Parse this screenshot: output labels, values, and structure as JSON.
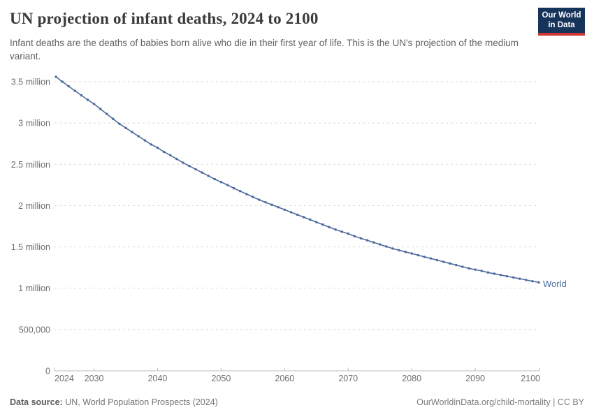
{
  "header": {
    "title": "UN projection of infant deaths, 2024 to 2100",
    "subtitle": "Infant deaths are the deaths of babies born alive who die in their first year of life. This is the UN's projection of the medium variant.",
    "logo": {
      "line1": "Our World",
      "line2": "in Data",
      "bg_color": "#16335a",
      "bar_color": "#cd3535"
    }
  },
  "footer": {
    "source_label": "Data source:",
    "source_value": " UN, World Population Prospects (2024)",
    "link": "OurWorldinData.org/child-mortality",
    "license": " | CC BY"
  },
  "chart_data": {
    "type": "line",
    "title": "UN projection of infant deaths, 2024 to 2100",
    "xlabel": "",
    "ylabel": "",
    "xlim": [
      2024,
      2100
    ],
    "ylim": [
      0,
      3500000
    ],
    "grid": "horizontal-dashed",
    "legend_position": "end-of-line",
    "colors": {
      "line": "#4c6a9c",
      "gridline": "#d9d9d9",
      "axis": "#bcbcbc",
      "tick_text": "#6e6e6e"
    },
    "x_ticks": [
      2024,
      2030,
      2040,
      2050,
      2060,
      2070,
      2080,
      2090,
      2100
    ],
    "y_ticks": [
      {
        "value": 0,
        "label": "0"
      },
      {
        "value": 500000,
        "label": "500,000"
      },
      {
        "value": 1000000,
        "label": "1 million"
      },
      {
        "value": 1500000,
        "label": "1.5 million"
      },
      {
        "value": 2000000,
        "label": "2 million"
      },
      {
        "value": 2500000,
        "label": "2.5 million"
      },
      {
        "value": 3000000,
        "label": "3 million"
      },
      {
        "value": 3500000,
        "label": "3.5 million"
      }
    ],
    "x": [
      2024,
      2025,
      2026,
      2027,
      2028,
      2029,
      2030,
      2031,
      2032,
      2033,
      2034,
      2035,
      2036,
      2037,
      2038,
      2039,
      2040,
      2041,
      2042,
      2043,
      2044,
      2045,
      2046,
      2047,
      2048,
      2049,
      2050,
      2051,
      2052,
      2053,
      2054,
      2055,
      2056,
      2057,
      2058,
      2059,
      2060,
      2061,
      2062,
      2063,
      2064,
      2065,
      2066,
      2067,
      2068,
      2069,
      2070,
      2071,
      2072,
      2073,
      2074,
      2075,
      2076,
      2077,
      2078,
      2079,
      2080,
      2081,
      2082,
      2083,
      2084,
      2085,
      2086,
      2087,
      2088,
      2089,
      2090,
      2091,
      2092,
      2093,
      2094,
      2095,
      2096,
      2097,
      2098,
      2099,
      2100
    ],
    "series": [
      {
        "name": "World",
        "color": "#4c6a9c",
        "values": [
          3560000,
          3500000,
          3445000,
          3390000,
          3335000,
          3280000,
          3230000,
          3170000,
          3110000,
          3050000,
          2990000,
          2940000,
          2890000,
          2840000,
          2790000,
          2740000,
          2700000,
          2650000,
          2610000,
          2565000,
          2520000,
          2480000,
          2440000,
          2400000,
          2360000,
          2320000,
          2285000,
          2250000,
          2210000,
          2175000,
          2140000,
          2105000,
          2070000,
          2040000,
          2010000,
          1980000,
          1950000,
          1920000,
          1890000,
          1860000,
          1830000,
          1800000,
          1770000,
          1740000,
          1710000,
          1685000,
          1660000,
          1630000,
          1605000,
          1580000,
          1555000,
          1530000,
          1505000,
          1480000,
          1460000,
          1440000,
          1420000,
          1400000,
          1380000,
          1360000,
          1340000,
          1320000,
          1300000,
          1280000,
          1260000,
          1240000,
          1225000,
          1210000,
          1190000,
          1175000,
          1160000,
          1145000,
          1130000,
          1115000,
          1100000,
          1085000,
          1070000
        ]
      }
    ]
  }
}
